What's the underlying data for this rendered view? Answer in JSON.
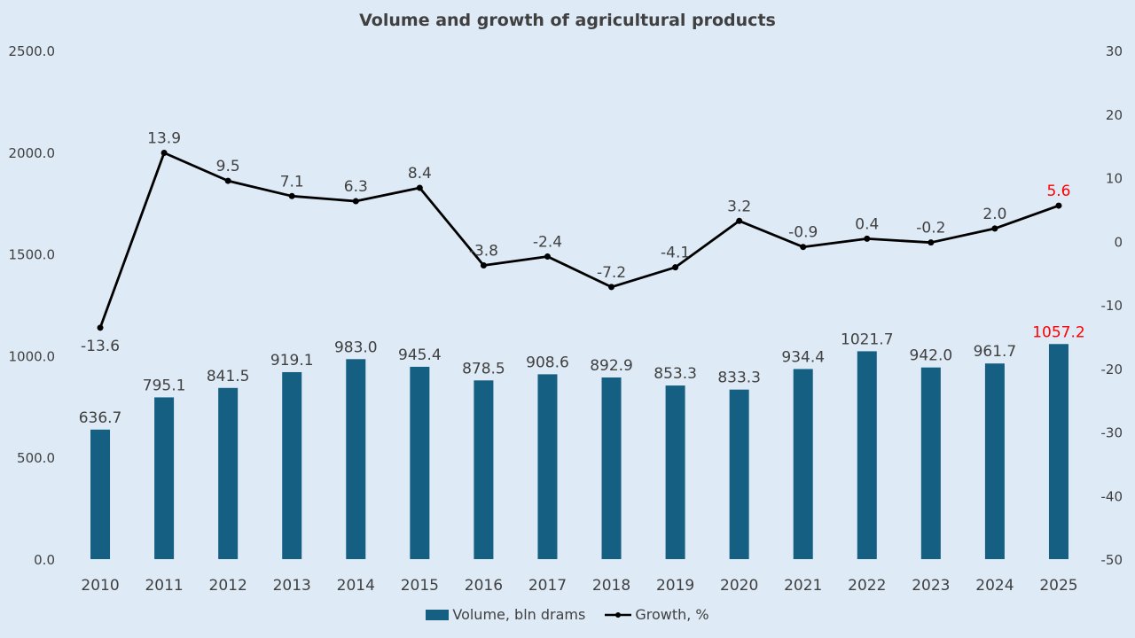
{
  "chart_data": {
    "type": "bar",
    "title": "Volume and growth of agricultural products",
    "categories": [
      "2010",
      "2011",
      "2012",
      "2013",
      "2014",
      "2015",
      "2016",
      "2017",
      "2018",
      "2019",
      "2020",
      "2021",
      "2022",
      "2023",
      "2024",
      "2025"
    ],
    "series": [
      {
        "name": "Volume, bln drams",
        "type": "bar",
        "axis": "left",
        "values": [
          636.7,
          795.1,
          841.5,
          919.1,
          983.0,
          945.4,
          878.5,
          908.6,
          892.9,
          853.3,
          833.3,
          934.4,
          1021.7,
          942.0,
          961.7,
          1057.2
        ],
        "labels": [
          "636.7",
          "795.1",
          "841.5",
          "919.1",
          "983.0",
          "945.4",
          "878.5",
          "908.6",
          "892.9",
          "853.3",
          "833.3",
          "934.4",
          "1021.7",
          "942.0",
          "961.7",
          "1057.2"
        ],
        "color": "#155f82"
      },
      {
        "name": "Growth, %",
        "type": "line",
        "axis": "right",
        "values": [
          -13.6,
          13.9,
          9.5,
          7.1,
          6.3,
          8.4,
          -3.8,
          -2.4,
          -7.2,
          -4.1,
          3.2,
          -0.9,
          0.4,
          -0.2,
          2.0,
          5.6
        ],
        "labels": [
          "-13.6",
          "13.9",
          "9.5",
          "7.1",
          "6.3",
          "8.4",
          "-3.8",
          "-2.4",
          "-7.2",
          "-4.1",
          "3.2",
          "-0.9",
          "0.4",
          "-0.2",
          "2.0",
          "5.6"
        ],
        "color": "#000000"
      }
    ],
    "y_left": {
      "range": [
        0,
        2500
      ],
      "ticks": [
        "0.0",
        "500.0",
        "1000.0",
        "1500.0",
        "2000.0",
        "2500.0"
      ]
    },
    "y_right": {
      "range": [
        -50,
        30
      ],
      "ticks": [
        "-50",
        "-40",
        "-30",
        "-20",
        "-10",
        "0",
        "10",
        "20",
        "30"
      ]
    },
    "highlight_color": "#ff0000",
    "highlight_category": "2025",
    "label_color": "#404040",
    "grid": false,
    "legend_position": "bottom"
  }
}
